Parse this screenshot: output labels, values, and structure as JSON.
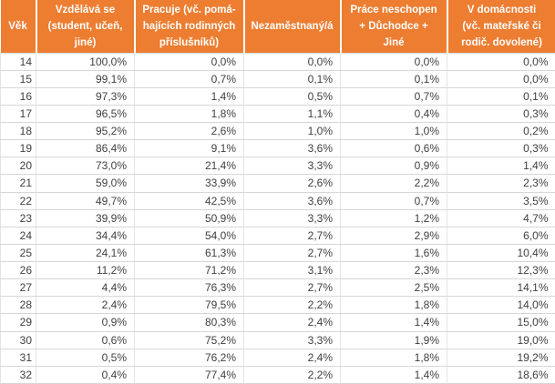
{
  "chart_data": {
    "type": "table",
    "columns": [
      "Věk",
      "Vzdělává se\n(student, učeň,\njiné)",
      "Pracuje (vč. pomá-\nhajících rodinných\npříslušníků)",
      "Nezaměstnaný/á",
      "Práce neschopen\n+ Důchodce +\nJiné",
      "V domácnosti\n(vč. mateřské či\nrodič. dovolené)"
    ],
    "rows": [
      [
        "14",
        "100,0%",
        "0,0%",
        "0,0%",
        "0,0%",
        "0,0%"
      ],
      [
        "15",
        "99,1%",
        "0,7%",
        "0,1%",
        "0,1%",
        "0,0%"
      ],
      [
        "16",
        "97,3%",
        "1,4%",
        "0,5%",
        "0,7%",
        "0,1%"
      ],
      [
        "17",
        "96,5%",
        "1,8%",
        "1,1%",
        "0,4%",
        "0,3%"
      ],
      [
        "18",
        "95,2%",
        "2,6%",
        "1,0%",
        "1,0%",
        "0,2%"
      ],
      [
        "19",
        "86,4%",
        "9,1%",
        "3,6%",
        "0,6%",
        "0,3%"
      ],
      [
        "20",
        "73,0%",
        "21,4%",
        "3,3%",
        "0,9%",
        "1,4%"
      ],
      [
        "21",
        "59,0%",
        "33,9%",
        "2,6%",
        "2,2%",
        "2,3%"
      ],
      [
        "22",
        "49,7%",
        "42,5%",
        "3,6%",
        "0,7%",
        "3,5%"
      ],
      [
        "23",
        "39,9%",
        "50,9%",
        "3,3%",
        "1,2%",
        "4,7%"
      ],
      [
        "24",
        "34,4%",
        "54,0%",
        "2,7%",
        "2,9%",
        "6,0%"
      ],
      [
        "25",
        "24,1%",
        "61,3%",
        "2,7%",
        "1,6%",
        "10,4%"
      ],
      [
        "26",
        "11,2%",
        "71,2%",
        "3,1%",
        "2,3%",
        "12,3%"
      ],
      [
        "27",
        "4,4%",
        "76,3%",
        "2,7%",
        "2,5%",
        "14,1%"
      ],
      [
        "28",
        "2,4%",
        "79,5%",
        "2,2%",
        "1,8%",
        "14,0%"
      ],
      [
        "29",
        "0,9%",
        "80,3%",
        "2,4%",
        "1,4%",
        "15,0%"
      ],
      [
        "30",
        "0,6%",
        "75,2%",
        "3,3%",
        "1,9%",
        "19,0%"
      ],
      [
        "31",
        "0,5%",
        "76,2%",
        "2,4%",
        "1,8%",
        "19,2%"
      ],
      [
        "32",
        "0,4%",
        "77,4%",
        "2,2%",
        "1,4%",
        "18,6%"
      ]
    ]
  },
  "colors": {
    "header_bg": "#ED7D31",
    "header_text": "#FFFFFF",
    "header_divider": "#FFFFFF",
    "body_text": "#3F3F3F",
    "grid_line": "#D7D7D7",
    "grid_line_light": "#E5E5E5",
    "row_bg": "#FFFFFF"
  }
}
